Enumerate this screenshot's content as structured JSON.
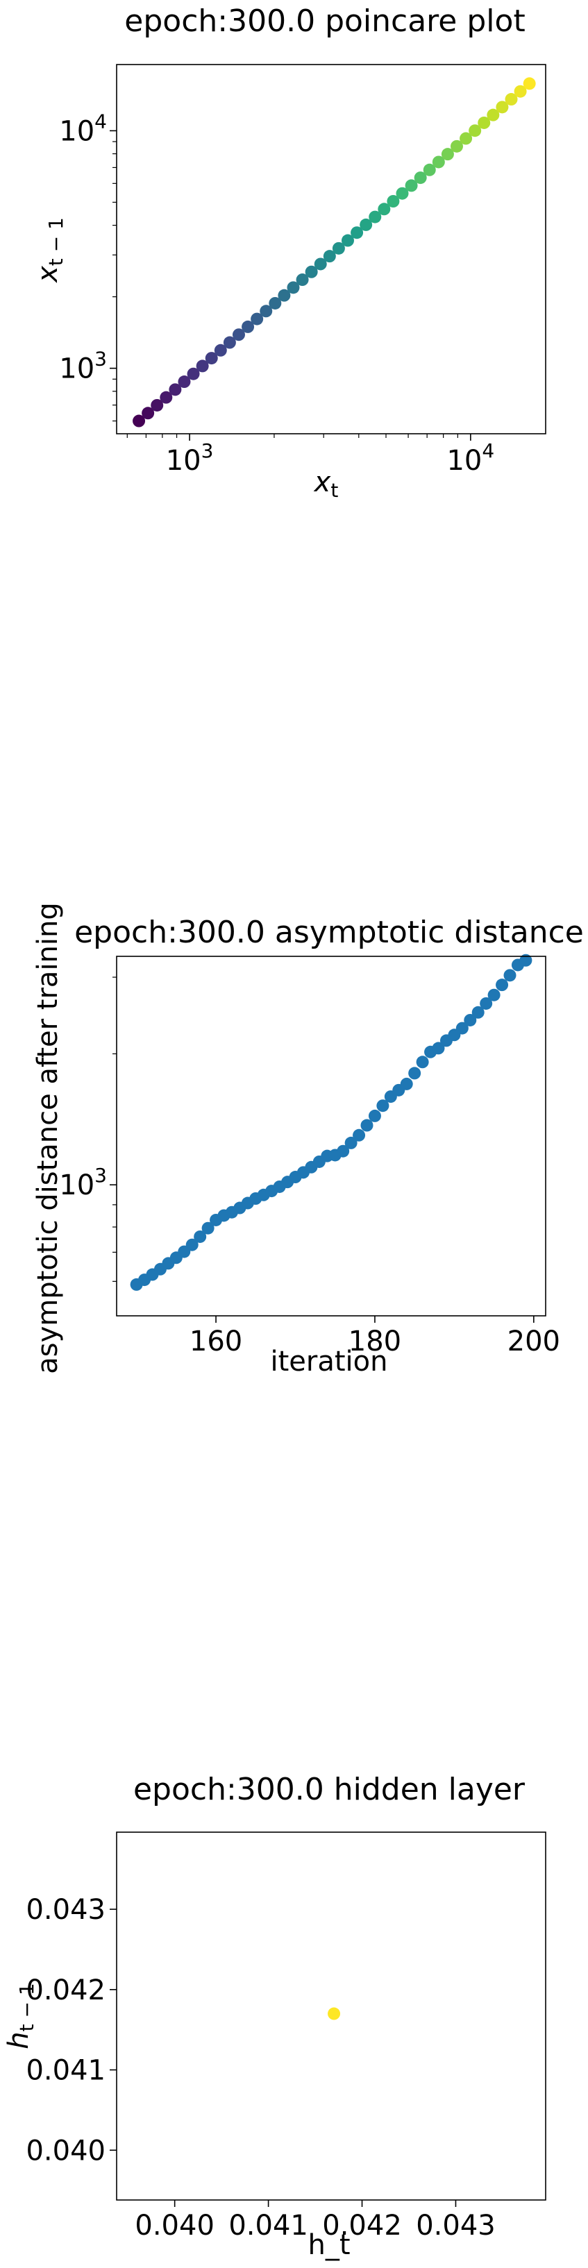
{
  "chart_data": [
    {
      "type": "scatter",
      "title": "epoch:300.0 poincare plot",
      "xlabel_base": "x",
      "xlabel_sub": "t",
      "ylabel_base": "x",
      "ylabel_sub": "t − 1",
      "xscale": "log",
      "yscale": "log",
      "xlim": [
        550,
        18500
      ],
      "ylim": [
        530,
        19000
      ],
      "xticks": [
        {
          "value": 1000,
          "base": "10",
          "exp": "3"
        },
        {
          "value": 10000,
          "base": "10",
          "exp": "4"
        }
      ],
      "yticks": [
        {
          "value": 1000,
          "base": "10",
          "exp": "3"
        },
        {
          "value": 10000,
          "base": "10",
          "exp": "4"
        }
      ],
      "colormap": "viridis",
      "colormap_stops": [
        "#440154",
        "#482878",
        "#3e4989",
        "#31688e",
        "#26828e",
        "#1f9e89",
        "#35b779",
        "#6ece58",
        "#b5de2b",
        "#fde725"
      ],
      "x_start": 660,
      "x_end": 16200,
      "y_start": 600,
      "y_end": 15800,
      "points_n": 44
    },
    {
      "type": "scatter",
      "title": "epoch:300.0 asymptotic distance",
      "xlabel": "iteration",
      "ylabel": "asymptotic distance after training",
      "yscale": "log",
      "xlim": [
        147.5,
        201.5
      ],
      "ylim": [
        500,
        3350
      ],
      "xticks": [
        160,
        180,
        200
      ],
      "yticks": [
        {
          "value": 1000,
          "base": "10",
          "exp": "3"
        }
      ],
      "color": "#1f77b4",
      "x": [
        150,
        151,
        152,
        153,
        154,
        155,
        156,
        157,
        158,
        159,
        160,
        161,
        162,
        163,
        164,
        165,
        166,
        167,
        168,
        169,
        170,
        171,
        172,
        173,
        174,
        175,
        176,
        177,
        178,
        179,
        180,
        181,
        182,
        183,
        184,
        185,
        186,
        187,
        188,
        189,
        190,
        191,
        192,
        193,
        194,
        195,
        196,
        197,
        198,
        199
      ],
      "y": [
        590,
        605,
        622,
        640,
        660,
        680,
        702,
        728,
        760,
        795,
        830,
        850,
        865,
        885,
        908,
        930,
        948,
        968,
        990,
        1015,
        1042,
        1068,
        1098,
        1130,
        1165,
        1170,
        1195,
        1248,
        1300,
        1370,
        1440,
        1520,
        1595,
        1650,
        1705,
        1805,
        1915,
        2020,
        2060,
        2145,
        2210,
        2290,
        2390,
        2490,
        2610,
        2730,
        2880,
        3030,
        3200,
        3280
      ]
    },
    {
      "type": "scatter",
      "title": "epoch:300.0 hidden layer",
      "xlabel": "h_t",
      "ylabel_base": "h",
      "ylabel_sub": "t − 1",
      "xlim": [
        0.03938,
        0.04396
      ],
      "ylim": [
        0.03938,
        0.04396
      ],
      "xticks": [
        "0.040",
        "0.041",
        "0.042",
        "0.043"
      ],
      "yticks": [
        "0.040",
        "0.041",
        "0.042",
        "0.043"
      ],
      "color": "#fde725",
      "x": [
        0.0417
      ],
      "y": [
        0.0417
      ]
    }
  ]
}
